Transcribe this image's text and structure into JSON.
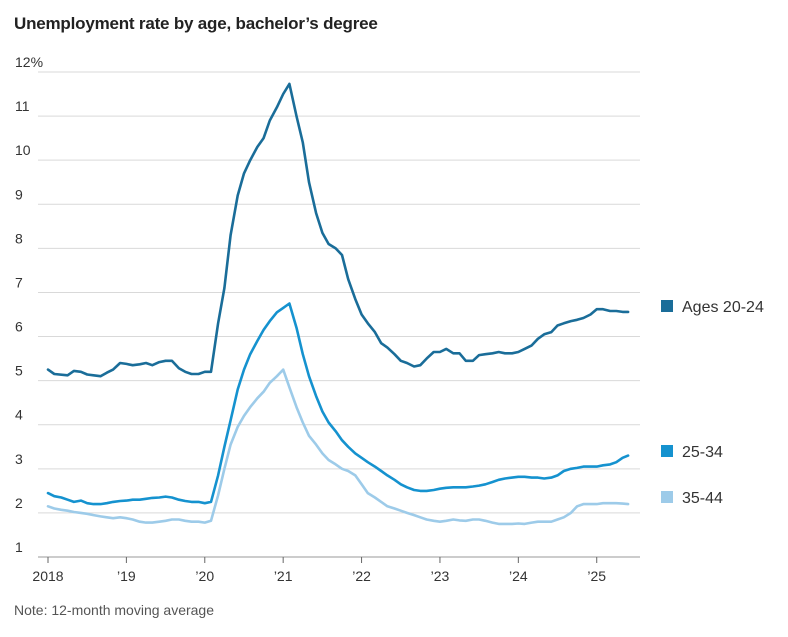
{
  "title": "Unemployment rate by age, bachelor’s degree",
  "note": "Note: 12-month moving average",
  "chart_data": {
    "type": "line",
    "title": "Unemployment rate by age, bachelor’s degree",
    "xlabel": "",
    "ylabel": "",
    "ylim": [
      1,
      12
    ],
    "xlim": [
      2018.0,
      2025.45
    ],
    "grid": true,
    "y_ticks": [
      {
        "value": 12,
        "label": "12%"
      },
      {
        "value": 11,
        "label": "11"
      },
      {
        "value": 10,
        "label": "10"
      },
      {
        "value": 9,
        "label": "9"
      },
      {
        "value": 8,
        "label": "8"
      },
      {
        "value": 7,
        "label": "7"
      },
      {
        "value": 6,
        "label": "6"
      },
      {
        "value": 5,
        "label": "5"
      },
      {
        "value": 4,
        "label": "4"
      },
      {
        "value": 3,
        "label": "3"
      },
      {
        "value": 2,
        "label": "2"
      },
      {
        "value": 1,
        "label": "1"
      }
    ],
    "x_ticks": [
      {
        "value": 2018,
        "label": "2018"
      },
      {
        "value": 2019,
        "label": "’19"
      },
      {
        "value": 2020,
        "label": "’20"
      },
      {
        "value": 2021,
        "label": "’21"
      },
      {
        "value": 2022,
        "label": "’22"
      },
      {
        "value": 2023,
        "label": "’23"
      },
      {
        "value": 2024,
        "label": "’24"
      },
      {
        "value": 2025,
        "label": "’25"
      }
    ],
    "legend_placement": "right",
    "series": [
      {
        "name": "Ages 20-24",
        "color": "#1a6d99",
        "x": [
          2018.0,
          2018.08,
          2018.25,
          2018.33,
          2018.42,
          2018.5,
          2018.58,
          2018.67,
          2018.75,
          2018.83,
          2018.92,
          2019.0,
          2019.08,
          2019.17,
          2019.25,
          2019.33,
          2019.42,
          2019.5,
          2019.58,
          2019.67,
          2019.75,
          2019.83,
          2019.92,
          2020.0,
          2020.08,
          2020.17,
          2020.25,
          2020.33,
          2020.42,
          2020.5,
          2020.58,
          2020.67,
          2020.75,
          2020.83,
          2020.92,
          2021.0,
          2021.08,
          2021.17,
          2021.25,
          2021.33,
          2021.42,
          2021.5,
          2021.58,
          2021.67,
          2021.75,
          2021.83,
          2021.92,
          2022.0,
          2022.08,
          2022.17,
          2022.25,
          2022.33,
          2022.42,
          2022.5,
          2022.58,
          2022.67,
          2022.75,
          2022.83,
          2022.92,
          2023.0,
          2023.08,
          2023.17,
          2023.25,
          2023.33,
          2023.42,
          2023.5,
          2023.58,
          2023.67,
          2023.75,
          2023.83,
          2023.92,
          2024.0,
          2024.08,
          2024.17,
          2024.25,
          2024.33,
          2024.42,
          2024.5,
          2024.58,
          2024.67,
          2024.75,
          2024.83,
          2024.92,
          2025.0,
          2025.08,
          2025.17,
          2025.25,
          2025.33,
          2025.4
        ],
        "values": [
          5.25,
          5.15,
          5.12,
          5.22,
          5.2,
          5.14,
          5.12,
          5.1,
          5.18,
          5.25,
          5.4,
          5.38,
          5.35,
          5.37,
          5.4,
          5.35,
          5.42,
          5.45,
          5.45,
          5.28,
          5.2,
          5.15,
          5.15,
          5.2,
          5.2,
          6.3,
          7.1,
          8.3,
          9.2,
          9.7,
          10.0,
          10.3,
          10.5,
          10.9,
          11.2,
          11.5,
          11.73,
          11.0,
          10.4,
          9.5,
          8.8,
          8.35,
          8.1,
          8.0,
          7.85,
          7.3,
          6.85,
          6.5,
          6.3,
          6.1,
          5.85,
          5.75,
          5.6,
          5.45,
          5.4,
          5.32,
          5.35,
          5.5,
          5.65,
          5.65,
          5.72,
          5.62,
          5.62,
          5.45,
          5.45,
          5.58,
          5.6,
          5.62,
          5.65,
          5.62,
          5.62,
          5.65,
          5.72,
          5.8,
          5.95,
          6.05,
          6.1,
          6.25,
          6.3,
          6.35,
          6.38,
          6.42,
          6.5,
          6.62,
          6.62,
          6.58,
          6.58,
          6.56,
          6.56
        ]
      },
      {
        "name": "25-34",
        "color": "#1592cf",
        "x": [
          2018.0,
          2018.08,
          2018.17,
          2018.25,
          2018.33,
          2018.42,
          2018.5,
          2018.58,
          2018.67,
          2018.75,
          2018.83,
          2018.92,
          2019.0,
          2019.08,
          2019.17,
          2019.25,
          2019.33,
          2019.42,
          2019.5,
          2019.58,
          2019.67,
          2019.75,
          2019.83,
          2019.92,
          2020.0,
          2020.08,
          2020.17,
          2020.25,
          2020.33,
          2020.42,
          2020.5,
          2020.58,
          2020.67,
          2020.75,
          2020.83,
          2020.92,
          2021.0,
          2021.08,
          2021.17,
          2021.25,
          2021.33,
          2021.42,
          2021.5,
          2021.58,
          2021.67,
          2021.75,
          2021.83,
          2021.92,
          2022.0,
          2022.08,
          2022.17,
          2022.25,
          2022.33,
          2022.42,
          2022.5,
          2022.58,
          2022.67,
          2022.75,
          2022.83,
          2022.92,
          2023.0,
          2023.08,
          2023.17,
          2023.25,
          2023.33,
          2023.42,
          2023.5,
          2023.58,
          2023.67,
          2023.75,
          2023.83,
          2023.92,
          2024.0,
          2024.08,
          2024.17,
          2024.25,
          2024.33,
          2024.42,
          2024.5,
          2024.58,
          2024.67,
          2024.75,
          2024.83,
          2024.92,
          2025.0,
          2025.08,
          2025.17,
          2025.25,
          2025.33,
          2025.4
        ],
        "values": [
          2.45,
          2.38,
          2.35,
          2.3,
          2.25,
          2.28,
          2.22,
          2.2,
          2.2,
          2.22,
          2.25,
          2.27,
          2.28,
          2.3,
          2.3,
          2.32,
          2.34,
          2.35,
          2.37,
          2.35,
          2.3,
          2.27,
          2.25,
          2.25,
          2.22,
          2.25,
          2.85,
          3.5,
          4.1,
          4.8,
          5.25,
          5.6,
          5.9,
          6.15,
          6.35,
          6.55,
          6.65,
          6.75,
          6.2,
          5.6,
          5.1,
          4.65,
          4.3,
          4.05,
          3.85,
          3.65,
          3.5,
          3.35,
          3.25,
          3.15,
          3.05,
          2.95,
          2.85,
          2.75,
          2.65,
          2.58,
          2.52,
          2.5,
          2.5,
          2.52,
          2.55,
          2.57,
          2.58,
          2.58,
          2.58,
          2.6,
          2.62,
          2.65,
          2.7,
          2.75,
          2.78,
          2.8,
          2.82,
          2.82,
          2.8,
          2.8,
          2.78,
          2.8,
          2.85,
          2.95,
          3.0,
          3.02,
          3.05,
          3.05,
          3.05,
          3.08,
          3.1,
          3.15,
          3.25,
          3.3
        ]
      },
      {
        "name": "35-44",
        "color": "#9dcbe9",
        "x": [
          2018.0,
          2018.08,
          2018.17,
          2018.25,
          2018.33,
          2018.42,
          2018.5,
          2018.58,
          2018.67,
          2018.75,
          2018.83,
          2018.92,
          2019.0,
          2019.08,
          2019.17,
          2019.25,
          2019.33,
          2019.42,
          2019.5,
          2019.58,
          2019.67,
          2019.75,
          2019.83,
          2019.92,
          2020.0,
          2020.08,
          2020.17,
          2020.25,
          2020.33,
          2020.42,
          2020.5,
          2020.58,
          2020.67,
          2020.75,
          2020.83,
          2020.92,
          2021.0,
          2021.08,
          2021.17,
          2021.25,
          2021.33,
          2021.42,
          2021.5,
          2021.58,
          2021.67,
          2021.75,
          2021.83,
          2021.92,
          2022.0,
          2022.08,
          2022.17,
          2022.25,
          2022.33,
          2022.42,
          2022.5,
          2022.58,
          2022.67,
          2022.75,
          2022.83,
          2022.92,
          2023.0,
          2023.08,
          2023.17,
          2023.25,
          2023.33,
          2023.42,
          2023.5,
          2023.58,
          2023.67,
          2023.75,
          2023.83,
          2023.92,
          2024.0,
          2024.08,
          2024.17,
          2024.25,
          2024.33,
          2024.42,
          2024.5,
          2024.58,
          2024.67,
          2024.75,
          2024.83,
          2024.92,
          2025.0,
          2025.08,
          2025.17,
          2025.25,
          2025.33,
          2025.4
        ],
        "values": [
          2.15,
          2.1,
          2.07,
          2.05,
          2.02,
          2.0,
          1.98,
          1.95,
          1.92,
          1.9,
          1.88,
          1.9,
          1.88,
          1.85,
          1.8,
          1.78,
          1.78,
          1.8,
          1.82,
          1.85,
          1.85,
          1.82,
          1.8,
          1.8,
          1.78,
          1.82,
          2.4,
          3.0,
          3.55,
          3.95,
          4.2,
          4.4,
          4.6,
          4.75,
          4.95,
          5.1,
          5.25,
          4.85,
          4.4,
          4.05,
          3.75,
          3.55,
          3.35,
          3.2,
          3.1,
          3.0,
          2.95,
          2.85,
          2.65,
          2.45,
          2.35,
          2.25,
          2.15,
          2.1,
          2.05,
          2.0,
          1.95,
          1.9,
          1.85,
          1.82,
          1.8,
          1.82,
          1.85,
          1.83,
          1.82,
          1.85,
          1.85,
          1.82,
          1.78,
          1.75,
          1.75,
          1.75,
          1.76,
          1.75,
          1.78,
          1.8,
          1.8,
          1.8,
          1.85,
          1.9,
          2.0,
          2.15,
          2.2,
          2.2,
          2.2,
          2.22,
          2.22,
          2.22,
          2.21,
          2.2
        ]
      }
    ]
  }
}
